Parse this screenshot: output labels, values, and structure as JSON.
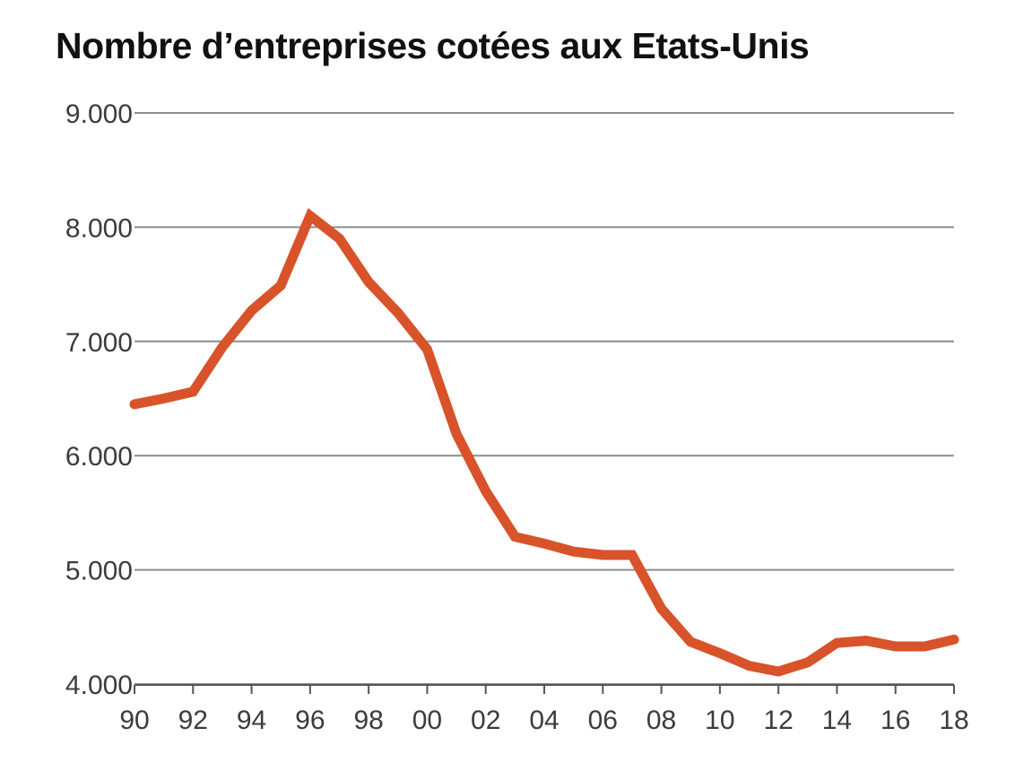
{
  "chart_data": {
    "type": "line",
    "title": "Nombre d’entreprises cotées aux Etats-Unis",
    "xlabel": "",
    "ylabel": "",
    "x": [
      1990,
      1991,
      1992,
      1993,
      1994,
      1995,
      1996,
      1997,
      1998,
      1999,
      2000,
      2001,
      2002,
      2003,
      2004,
      2005,
      2006,
      2007,
      2008,
      2009,
      2010,
      2011,
      2012,
      2013,
      2014,
      2015,
      2016,
      2017,
      2018
    ],
    "x_tick_labels": [
      "90",
      "92",
      "94",
      "96",
      "98",
      "00",
      "02",
      "04",
      "06",
      "08",
      "10",
      "12",
      "14",
      "16",
      "18"
    ],
    "x_tick_values": [
      1990,
      1992,
      1994,
      1996,
      1998,
      2000,
      2002,
      2004,
      2006,
      2008,
      2010,
      2012,
      2014,
      2016,
      2018
    ],
    "y_tick_labels": [
      "4.000",
      "5.000",
      "6.000",
      "7.000",
      "8.000",
      "9.000"
    ],
    "y_tick_values": [
      4000,
      5000,
      6000,
      7000,
      8000,
      9000
    ],
    "xlim": [
      1990,
      2018
    ],
    "ylim": [
      4000,
      9000
    ],
    "grid": "horizontal",
    "series": [
      {
        "values": [
          6450,
          6500,
          6560,
          6950,
          7270,
          7490,
          8100,
          7900,
          7520,
          7250,
          6930,
          6190,
          5690,
          5290,
          5230,
          5160,
          5130,
          5130,
          4660,
          4370,
          4270,
          4160,
          4110,
          4190,
          4360,
          4380,
          4330,
          4330,
          4390
        ],
        "color": "#d8532a"
      }
    ],
    "grid_color": "#8c8c8c",
    "axis_color": "#555555"
  }
}
